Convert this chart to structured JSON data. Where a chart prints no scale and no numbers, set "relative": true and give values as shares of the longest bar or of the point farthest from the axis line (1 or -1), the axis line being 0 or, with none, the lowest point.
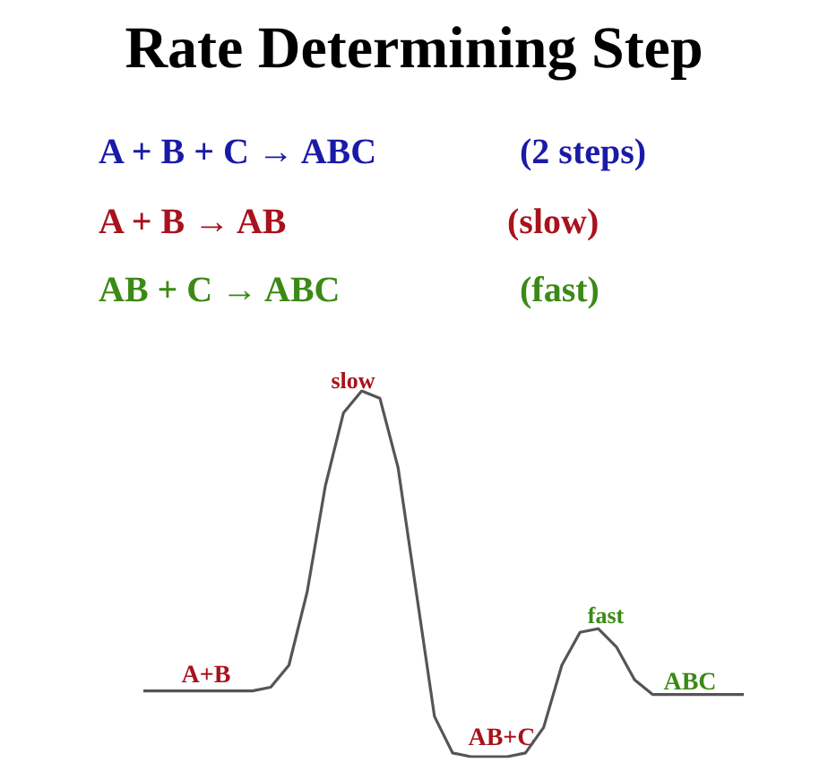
{
  "chart_data": {
    "type": "line",
    "title": "Rate Determining Step",
    "relative": true,
    "marker": "none",
    "grid": false,
    "categories": [
      null,
      null,
      null,
      null,
      null,
      null,
      null,
      null,
      null,
      null,
      null,
      null,
      null,
      null,
      null,
      null,
      null,
      null,
      null,
      null,
      null,
      null,
      null,
      null,
      null,
      null,
      null,
      null,
      null,
      null,
      null,
      null,
      null,
      null
    ],
    "series": [
      {
        "color": "#555555",
        "values": [
          0.18,
          0.18,
          0.18,
          0.18,
          0.18,
          0.18,
          0.18,
          0.19,
          0.25,
          0.45,
          0.74,
          0.94,
          1,
          0.98,
          0.79,
          0.45,
          0.11,
          0.01,
          0,
          0,
          0,
          0.01,
          0.08,
          0.25,
          0.34,
          0.35,
          0.3,
          0.21,
          0.17,
          0.17,
          0.17,
          0.17,
          0.17,
          0.17
        ]
      }
    ],
    "annotations": [
      "A + B + C → ABC",
      "(2 steps)",
      "A + B → AB",
      "(slow)",
      "AB + C → ABC",
      "(fast)",
      "slow",
      "A+B",
      "AB+C",
      "fast",
      "ABC"
    ]
  }
}
